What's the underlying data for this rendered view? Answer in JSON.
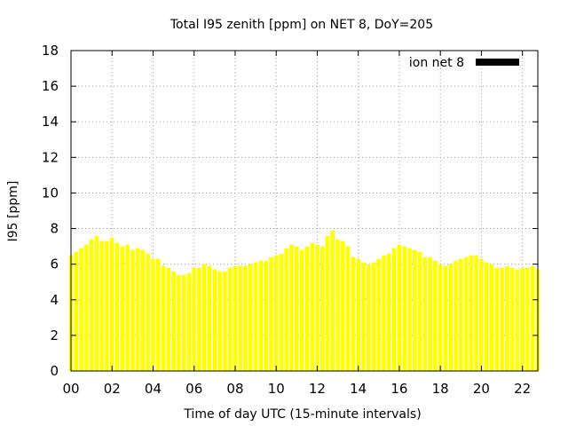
{
  "chart_data": {
    "type": "bar",
    "title": "Total I95 zenith [ppm] on NET 8, DoY=205",
    "xlabel": "Time of day UTC (15-minute intervals)",
    "ylabel": "I95 [ppm]",
    "xlim": [
      0,
      22.75
    ],
    "ylim": [
      0,
      18
    ],
    "grid": true,
    "legend_position": "top-right",
    "bar_color": "#ffff00",
    "x_ticks": [
      "00",
      "02",
      "04",
      "06",
      "08",
      "10",
      "12",
      "14",
      "16",
      "18",
      "20",
      "22"
    ],
    "y_ticks": [
      "0",
      "2",
      "4",
      "6",
      "8",
      "10",
      "12",
      "14",
      "16",
      "18"
    ],
    "series": [
      {
        "name": "ion net 8",
        "legend_color": "#000000",
        "interval_hours": 0.25,
        "values": [
          6.5,
          6.7,
          6.9,
          7.1,
          7.4,
          7.6,
          7.3,
          7.3,
          7.5,
          7.2,
          7.0,
          7.1,
          6.8,
          6.9,
          6.8,
          6.6,
          6.3,
          6.3,
          5.9,
          5.8,
          5.6,
          5.4,
          5.4,
          5.5,
          5.8,
          5.8,
          6.0,
          5.9,
          5.7,
          5.6,
          5.6,
          5.8,
          5.9,
          5.9,
          5.9,
          6.0,
          6.1,
          6.2,
          6.2,
          6.4,
          6.5,
          6.6,
          6.9,
          7.1,
          7.0,
          6.8,
          7.0,
          7.2,
          7.1,
          7.0,
          7.6,
          7.9,
          7.4,
          7.3,
          7.0,
          6.4,
          6.3,
          6.1,
          6.0,
          6.1,
          6.3,
          6.5,
          6.6,
          6.9,
          7.1,
          7.0,
          6.9,
          6.8,
          6.7,
          6.4,
          6.4,
          6.2,
          6.0,
          5.9,
          6.0,
          6.2,
          6.3,
          6.4,
          6.5,
          6.5,
          6.3,
          6.1,
          6.0,
          5.8,
          5.8,
          5.9,
          5.8,
          5.7,
          5.8,
          5.8,
          5.9,
          5.7
        ]
      }
    ]
  }
}
